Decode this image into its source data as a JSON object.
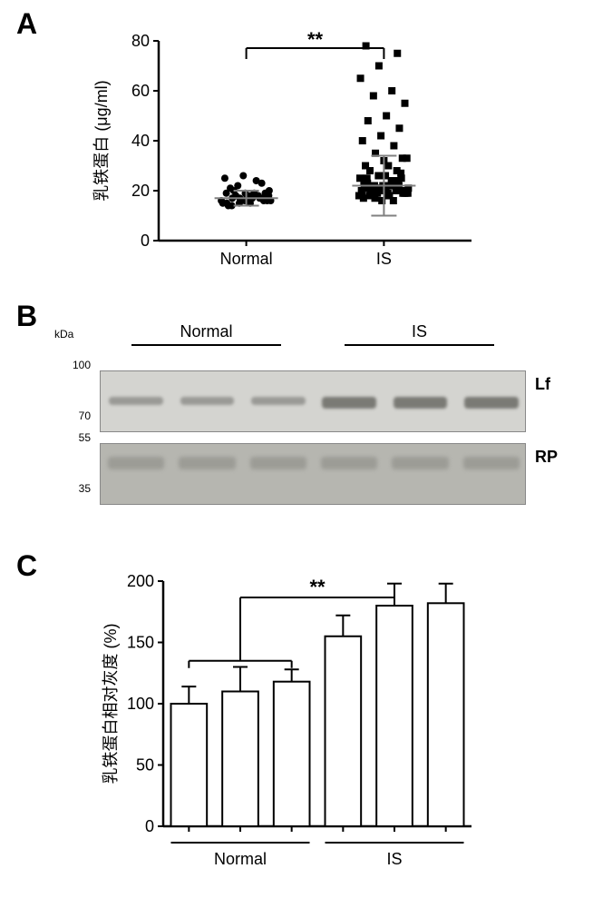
{
  "panelA": {
    "type": "scatter",
    "ylabel": "乳铁蛋白 (μg/ml)",
    "label_fontsize": 18,
    "ylim": [
      0,
      80
    ],
    "ytick_step": 20,
    "yticks": [
      0,
      20,
      40,
      60,
      80
    ],
    "categories": [
      "Normal",
      "IS"
    ],
    "tick_fontsize": 18,
    "sig_label": "**",
    "sig_fontsize": 22,
    "marker_size": 4,
    "point_color": "#000000",
    "error_bar_color": "#808080",
    "background_color": "#ffffff",
    "normal": {
      "mean": 17,
      "sd": 3,
      "points": [
        16,
        17,
        18,
        15,
        19,
        16,
        17,
        18,
        20,
        22,
        24,
        25,
        26,
        23,
        21,
        17,
        16,
        18,
        19,
        15,
        16,
        17,
        14,
        18,
        19,
        20,
        17,
        16,
        15,
        18,
        19,
        16,
        17,
        14,
        15,
        18
      ]
    },
    "is": {
      "mean": 22,
      "sd": 12,
      "points": [
        18,
        19,
        20,
        21,
        22,
        25,
        28,
        30,
        33,
        35,
        38,
        40,
        42,
        45,
        48,
        50,
        55,
        58,
        60,
        65,
        70,
        75,
        78,
        20,
        19,
        18,
        22,
        21,
        20,
        24,
        23,
        26,
        27,
        18,
        19,
        20,
        17,
        16,
        18,
        21,
        22,
        23,
        20,
        19,
        18,
        24,
        25,
        26,
        28,
        30,
        32,
        33,
        20,
        18,
        19,
        21,
        22,
        17,
        16,
        20,
        21,
        18,
        19,
        22,
        23,
        20,
        21,
        24,
        25,
        26
      ]
    }
  },
  "panelB": {
    "type": "western-blot",
    "groups": [
      "Normal",
      "IS"
    ],
    "group_fontsize": 18,
    "kda_label": "kDa",
    "kda_fontsize": 12,
    "lf": {
      "label": "Lf",
      "markers": [
        100.0,
        70.0
      ],
      "band_color_normal": "#9a9a96",
      "band_color_is": "#7a7a75",
      "background": "#d4d4d0"
    },
    "rp": {
      "label": "RP",
      "markers": [
        55.0,
        35.0
      ],
      "band_color": "#9c9c96",
      "background": "#b6b6b0"
    },
    "lanes": 6
  },
  "panelC": {
    "type": "bar",
    "ylabel": "乳铁蛋白相对灰度 (%)",
    "label_fontsize": 18,
    "ylim": [
      0,
      200
    ],
    "ytick_step": 50,
    "yticks": [
      0,
      50,
      100,
      150,
      200
    ],
    "categories": [
      "Normal",
      "IS"
    ],
    "tick_fontsize": 18,
    "sig_label": "**",
    "sig_fontsize": 22,
    "bar_fill": "#ffffff",
    "bar_stroke": "#000000",
    "bar_stroke_width": 2,
    "bar_width": 0.7,
    "bars": [
      {
        "value": 100,
        "err": 14
      },
      {
        "value": 110,
        "err": 20
      },
      {
        "value": 118,
        "err": 10
      },
      {
        "value": 155,
        "err": 17
      },
      {
        "value": 180,
        "err": 18
      },
      {
        "value": 182,
        "err": 16
      }
    ]
  },
  "labels": {
    "A": "A",
    "B": "B",
    "C": "C"
  }
}
